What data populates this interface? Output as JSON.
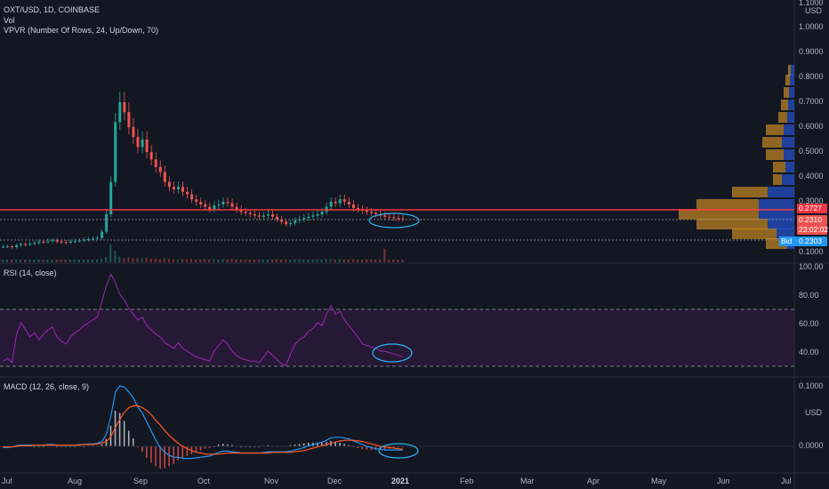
{
  "header": {
    "symbol": "OXT/USD, 1D, COINBASE",
    "vol": "Vol",
    "vpvr": "VPVR (Number Of Rows, 24, Up/Down, 70)",
    "scale_top": "1.1000",
    "scale_unit": "USD"
  },
  "price_axis": [
    "1.0000",
    "0.9000",
    "0.8000",
    "0.7000",
    "0.6000",
    "0.5000",
    "0.4000",
    "0.3000",
    "0.1000"
  ],
  "price_tags": {
    "red": "0.2727",
    "last": "0.2310",
    "timer": "23:02:02",
    "bid_label": "Bid",
    "bid": "0.2303"
  },
  "rsi": {
    "title": "RSI (14, close)",
    "axis": [
      "100.00",
      "80.00",
      "60.00",
      "40.00"
    ]
  },
  "macd": {
    "title": "MACD (12, 26, close, 9)",
    "axis": [
      "0.1000",
      "USD",
      "0.0000"
    ]
  },
  "time_axis": [
    "Jul",
    "Aug",
    "Sep",
    "Oct",
    "Nov",
    "Dec",
    "2021",
    "Feb",
    "Mar",
    "Apr",
    "May",
    "Jun",
    "Jul"
  ],
  "colors": {
    "up": "#26a69a",
    "down": "#ef5350",
    "rsi": "#9c27b0",
    "macd": "#2196f3",
    "signal": "#ff5722",
    "red_line": "#f23645"
  },
  "chart_data": {
    "type": "candlestick",
    "series_note": "",
    "close": [
      0.12,
      0.121,
      0.118,
      0.125,
      0.13,
      0.128,
      0.132,
      0.135,
      0.14,
      0.138,
      0.142,
      0.145,
      0.14,
      0.138,
      0.136,
      0.14,
      0.143,
      0.145,
      0.148,
      0.15,
      0.152,
      0.155,
      0.18,
      0.25,
      0.38,
      0.62,
      0.7,
      0.66,
      0.6,
      0.56,
      0.52,
      0.55,
      0.5,
      0.47,
      0.44,
      0.42,
      0.38,
      0.36,
      0.35,
      0.36,
      0.34,
      0.33,
      0.31,
      0.3,
      0.29,
      0.28,
      0.27,
      0.285,
      0.29,
      0.3,
      0.295,
      0.28,
      0.27,
      0.26,
      0.255,
      0.25,
      0.245,
      0.24,
      0.245,
      0.25,
      0.24,
      0.23,
      0.22,
      0.21,
      0.215,
      0.225,
      0.23,
      0.235,
      0.24,
      0.245,
      0.25,
      0.26,
      0.28,
      0.3,
      0.295,
      0.31,
      0.3,
      0.29,
      0.275,
      0.27,
      0.265,
      0.26,
      0.255,
      0.25,
      0.245,
      0.24,
      0.238,
      0.235,
      0.233,
      0.231
    ],
    "rsi": [
      33,
      35,
      32,
      52,
      60,
      55,
      50,
      53,
      48,
      52,
      55,
      57,
      50,
      47,
      45,
      50,
      53,
      55,
      58,
      60,
      62,
      64,
      75,
      86,
      94,
      88,
      80,
      76,
      70,
      66,
      62,
      64,
      58,
      55,
      52,
      50,
      46,
      44,
      42,
      46,
      42,
      40,
      38,
      36,
      35,
      34,
      33,
      40,
      44,
      48,
      45,
      40,
      37,
      35,
      34,
      33,
      33,
      32,
      36,
      40,
      37,
      34,
      31,
      30,
      38,
      45,
      48,
      50,
      54,
      56,
      60,
      58,
      66,
      72,
      66,
      68,
      62,
      58,
      54,
      50,
      45,
      44,
      43,
      42,
      40,
      40,
      39,
      38,
      37,
      36
    ],
    "macd": [
      -0.002,
      -0.002,
      -0.001,
      0.001,
      0.002,
      0.002,
      0.002,
      0.002,
      0.002,
      0.002,
      0.003,
      0.003,
      0.002,
      0.002,
      0.002,
      0.002,
      0.002,
      0.003,
      0.003,
      0.004,
      0.004,
      0.005,
      0.008,
      0.02,
      0.05,
      0.09,
      0.1,
      0.098,
      0.09,
      0.08,
      0.065,
      0.055,
      0.04,
      0.025,
      0.01,
      -0.002,
      -0.01,
      -0.015,
      -0.018,
      -0.018,
      -0.02,
      -0.02,
      -0.02,
      -0.019,
      -0.018,
      -0.017,
      -0.016,
      -0.013,
      -0.01,
      -0.008,
      -0.008,
      -0.009,
      -0.01,
      -0.011,
      -0.011,
      -0.011,
      -0.011,
      -0.011,
      -0.01,
      -0.009,
      -0.009,
      -0.009,
      -0.009,
      -0.009,
      -0.008,
      -0.006,
      -0.004,
      -0.002,
      0.001,
      0.003,
      0.005,
      0.007,
      0.01,
      0.014,
      0.015,
      0.015,
      0.014,
      0.012,
      0.009,
      0.006,
      0.003,
      0.0,
      -0.002,
      -0.004,
      -0.005,
      -0.006,
      -0.006,
      -0.006,
      -0.006,
      -0.006
    ],
    "signal": [
      -0.001,
      -0.001,
      -0.001,
      0.0,
      0.001,
      0.001,
      0.001,
      0.002,
      0.002,
      0.002,
      0.002,
      0.002,
      0.002,
      0.002,
      0.002,
      0.002,
      0.002,
      0.002,
      0.003,
      0.003,
      0.003,
      0.004,
      0.005,
      0.008,
      0.016,
      0.031,
      0.045,
      0.056,
      0.064,
      0.067,
      0.067,
      0.064,
      0.059,
      0.052,
      0.043,
      0.035,
      0.026,
      0.018,
      0.011,
      0.005,
      0.0,
      -0.004,
      -0.007,
      -0.01,
      -0.011,
      -0.013,
      -0.013,
      -0.013,
      -0.013,
      -0.012,
      -0.011,
      -0.011,
      -0.011,
      -0.011,
      -0.011,
      -0.011,
      -0.011,
      -0.011,
      -0.011,
      -0.011,
      -0.01,
      -0.01,
      -0.01,
      -0.01,
      -0.01,
      -0.009,
      -0.008,
      -0.007,
      -0.005,
      -0.003,
      -0.001,
      0.001,
      0.003,
      0.005,
      0.007,
      0.009,
      0.01,
      0.01,
      0.01,
      0.009,
      0.008,
      0.006,
      0.004,
      0.002,
      0.0,
      -0.001,
      -0.002,
      -0.003,
      -0.004,
      -0.005
    ]
  }
}
